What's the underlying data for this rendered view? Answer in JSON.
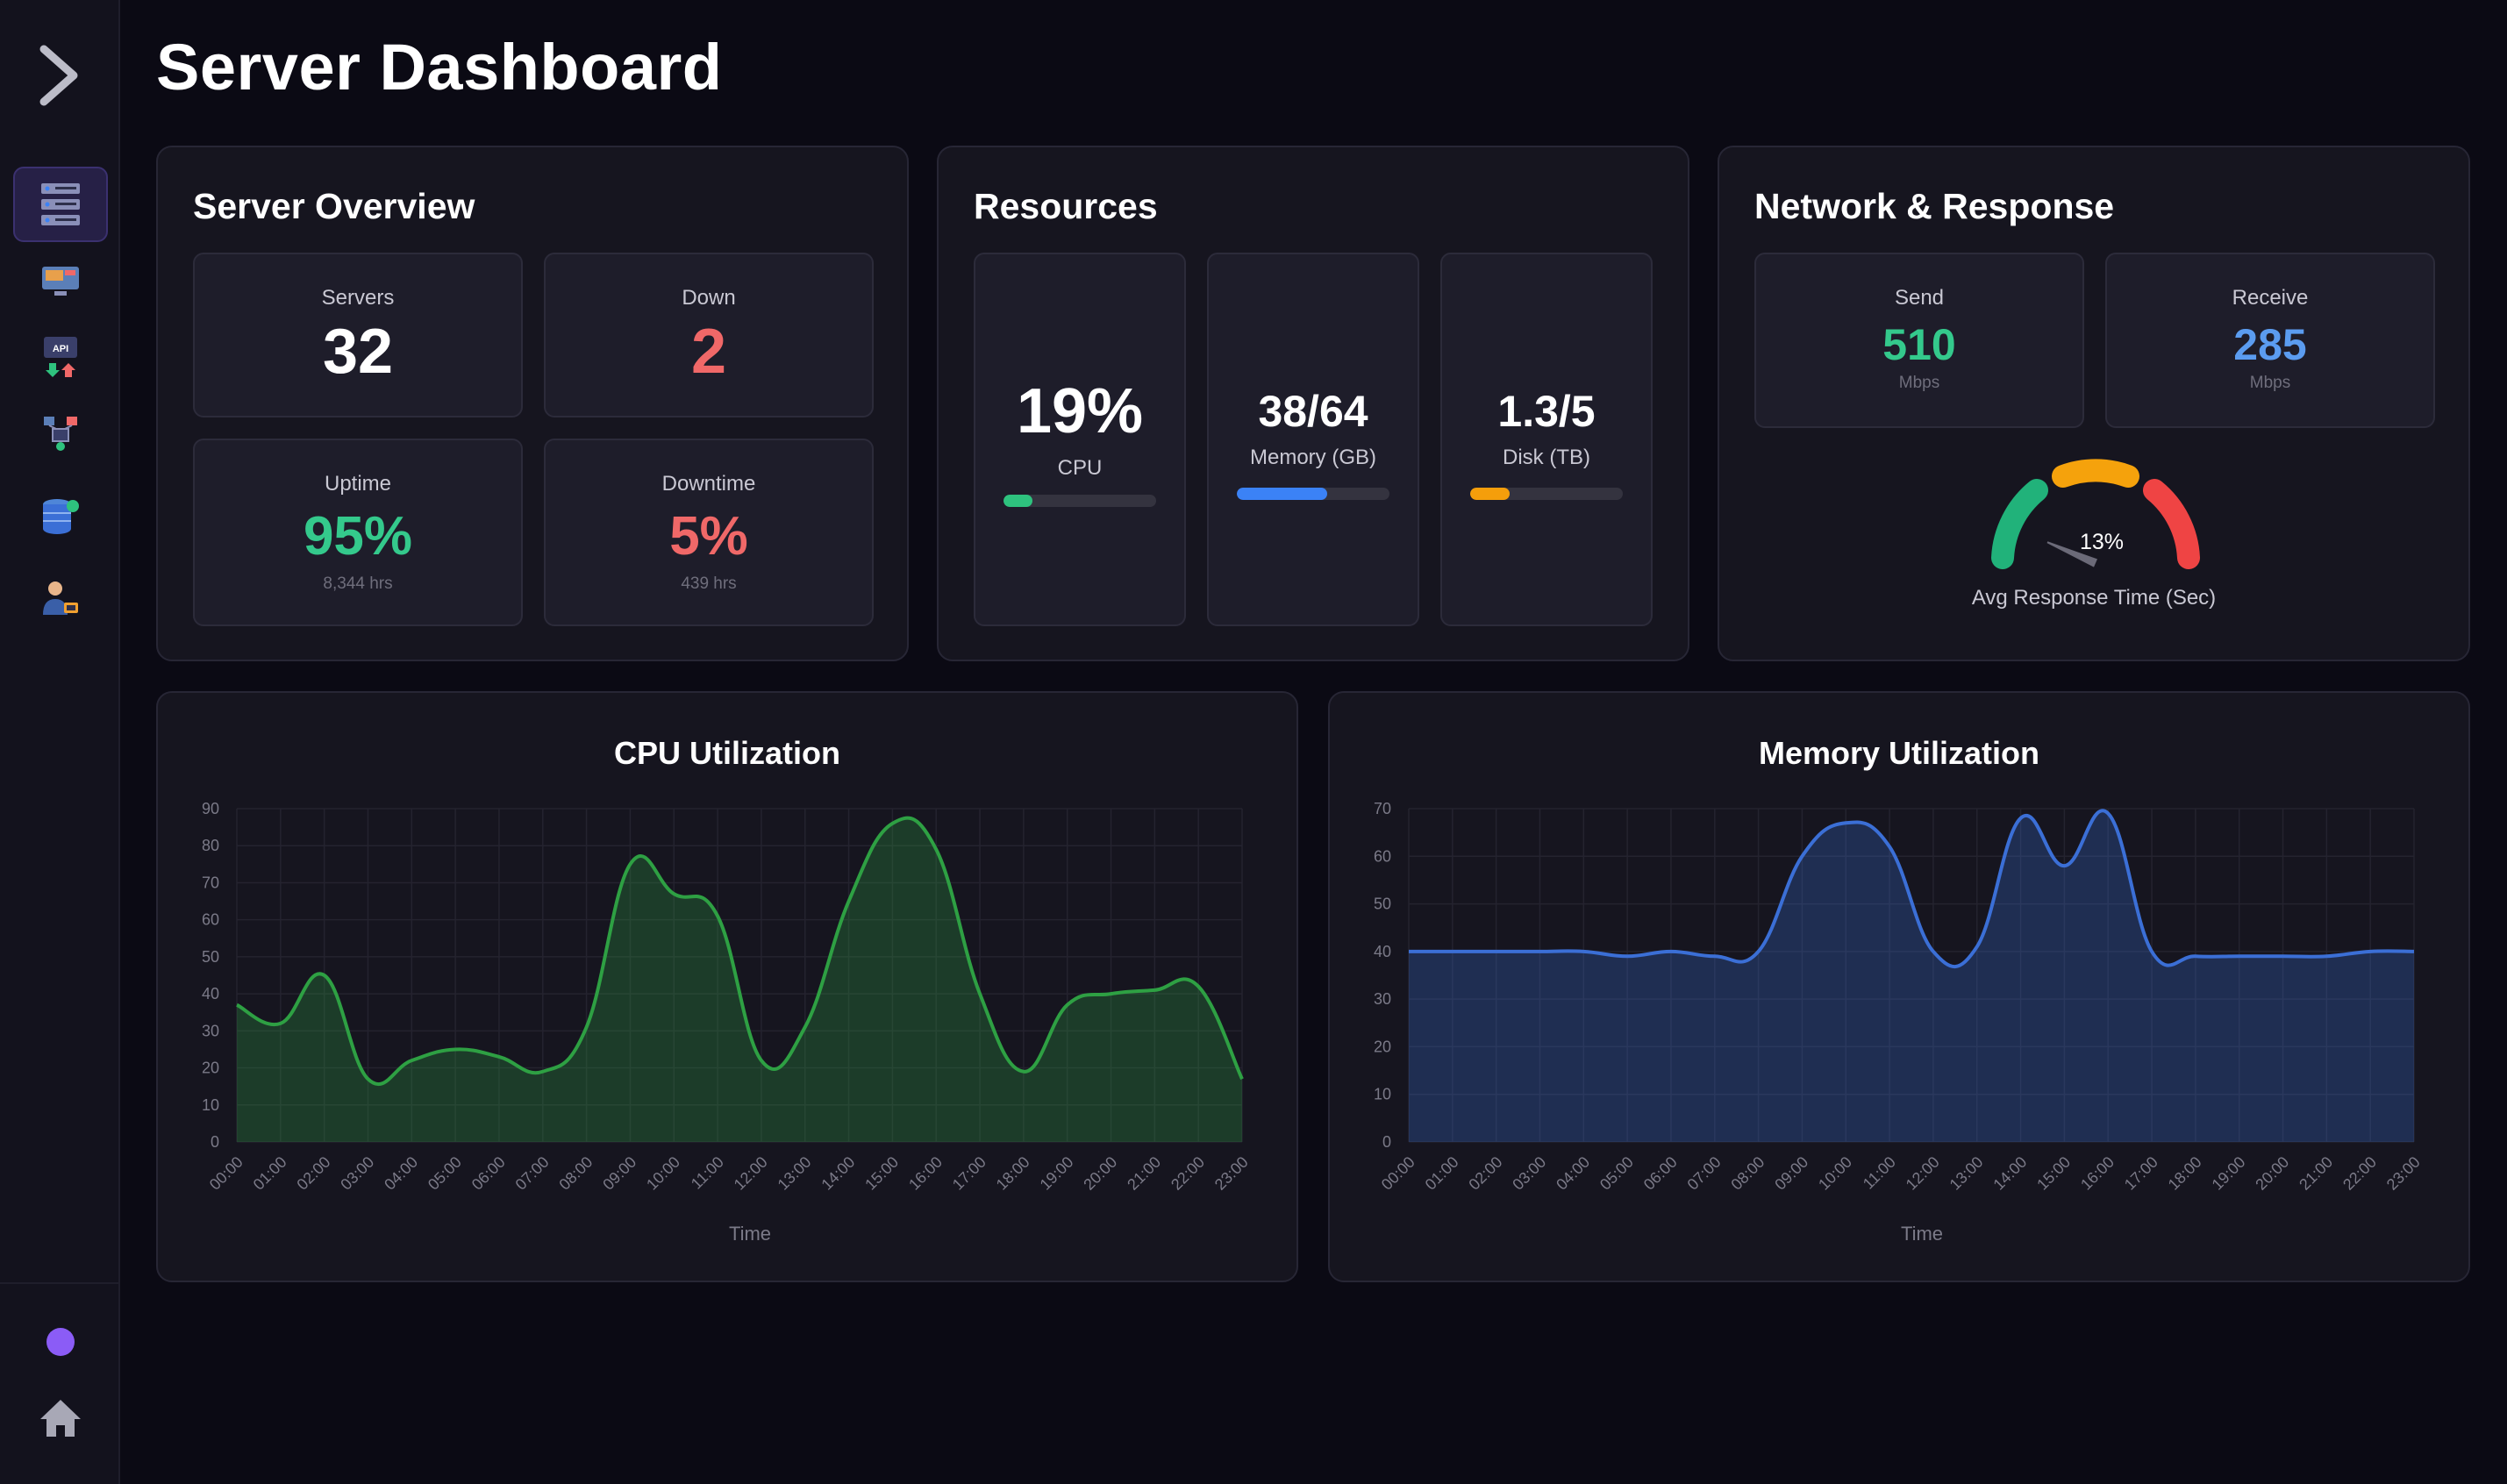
{
  "page_title": "Server Dashboard",
  "sidebar": {
    "items": [
      {
        "name": "servers",
        "icon": "server-rack-icon"
      },
      {
        "name": "monitor",
        "icon": "monitor-icon"
      },
      {
        "name": "api",
        "icon": "api-icon",
        "label": "API"
      },
      {
        "name": "network",
        "icon": "network-icon"
      },
      {
        "name": "database",
        "icon": "database-icon"
      },
      {
        "name": "users",
        "icon": "user-admin-icon"
      }
    ],
    "accent": "#8b5cf6"
  },
  "overview": {
    "title": "Server Overview",
    "servers": {
      "label": "Servers",
      "value": "32"
    },
    "down": {
      "label": "Down",
      "value": "2"
    },
    "uptime": {
      "label": "Uptime",
      "value": "95%",
      "sub": "8,344 hrs"
    },
    "downtime": {
      "label": "Downtime",
      "value": "5%",
      "sub": "439 hrs"
    }
  },
  "resources": {
    "title": "Resources",
    "cpu": {
      "value": "19%",
      "label": "CPU",
      "fraction": 0.19,
      "color": "#2ec27e"
    },
    "memory": {
      "value": "38/64",
      "label": "Memory (GB)",
      "fraction": 0.59,
      "color": "#3b82f6"
    },
    "disk": {
      "value": "1.3/5",
      "label": "Disk (TB)",
      "fraction": 0.26,
      "color": "#f59e0b"
    }
  },
  "network": {
    "title": "Network & Response",
    "send": {
      "label": "Send",
      "value": "510",
      "unit": "Mbps"
    },
    "receive": {
      "label": "Receive",
      "value": "285",
      "unit": "Mbps"
    },
    "gauge": {
      "value_label": "13%",
      "value": 13,
      "caption": "Avg Response Time (Sec)"
    }
  },
  "chart_data": [
    {
      "type": "area",
      "title": "CPU Utilization",
      "xlabel": "Time",
      "ylabel": "",
      "ylim": [
        0,
        90
      ],
      "yticks": [
        0,
        10,
        20,
        30,
        40,
        50,
        60,
        70,
        80,
        90
      ],
      "categories": [
        "00:00",
        "01:00",
        "02:00",
        "03:00",
        "04:00",
        "05:00",
        "06:00",
        "07:00",
        "08:00",
        "09:00",
        "10:00",
        "11:00",
        "12:00",
        "13:00",
        "14:00",
        "15:00",
        "16:00",
        "17:00",
        "18:00",
        "19:00",
        "20:00",
        "21:00",
        "22:00",
        "23:00"
      ],
      "values": [
        37,
        32,
        45,
        17,
        22,
        25,
        23,
        19,
        31,
        75,
        67,
        61,
        22,
        31,
        65,
        86,
        79,
        40,
        19,
        37,
        40,
        41,
        42,
        17
      ],
      "color": "#2ea043"
    },
    {
      "type": "area",
      "title": "Memory Utilization",
      "xlabel": "Time",
      "ylabel": "",
      "ylim": [
        0,
        70
      ],
      "yticks": [
        0,
        10,
        20,
        30,
        40,
        50,
        60,
        70
      ],
      "categories": [
        "00:00",
        "01:00",
        "02:00",
        "03:00",
        "04:00",
        "05:00",
        "06:00",
        "07:00",
        "08:00",
        "09:00",
        "10:00",
        "11:00",
        "12:00",
        "13:00",
        "14:00",
        "15:00",
        "16:00",
        "17:00",
        "18:00",
        "19:00",
        "20:00",
        "21:00",
        "22:00",
        "23:00"
      ],
      "values": [
        40,
        40,
        40,
        40,
        40,
        39,
        40,
        39,
        40,
        60,
        67,
        62,
        40,
        41,
        68,
        58,
        69,
        40,
        39,
        39,
        39,
        39,
        40,
        40
      ],
      "color": "#3b6fd6"
    }
  ]
}
